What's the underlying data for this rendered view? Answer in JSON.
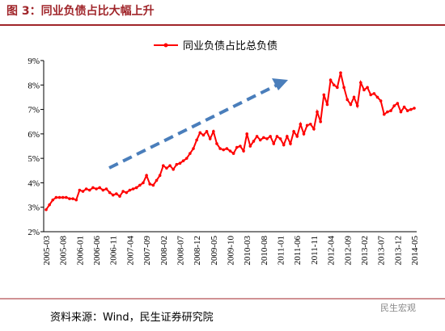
{
  "chart_data": {
    "type": "line",
    "title": "图 3：同业负债占比大幅上升",
    "source": "资料来源：Wind，民生证券研究院",
    "watermark": "民生宏观",
    "categories": [
      "2005-03",
      null,
      null,
      null,
      null,
      "2005-08",
      null,
      null,
      null,
      null,
      "2006-01",
      null,
      null,
      null,
      null,
      "2006-06",
      null,
      null,
      null,
      null,
      "2006-11",
      null,
      null,
      null,
      null,
      "2007-04",
      null,
      null,
      null,
      null,
      "2007-09",
      null,
      null,
      null,
      null,
      "2008-02",
      null,
      null,
      null,
      null,
      "2008-07",
      null,
      null,
      null,
      null,
      "2008-12",
      null,
      null,
      null,
      null,
      "2009-05",
      null,
      null,
      null,
      null,
      "2009-10",
      null,
      null,
      null,
      null,
      "2010-03",
      null,
      null,
      null,
      null,
      "2010-08",
      null,
      null,
      null,
      null,
      "2011-01",
      null,
      null,
      null,
      null,
      "2011-06",
      null,
      null,
      null,
      null,
      "2011-11",
      null,
      null,
      null,
      null,
      "2012-04",
      null,
      null,
      null,
      null,
      "2012-09",
      null,
      null,
      null,
      null,
      "2013-02",
      null,
      null,
      null,
      null,
      "2013-07",
      null,
      null,
      null,
      null,
      "2013-12",
      null,
      null,
      null,
      null,
      "2014-05"
    ],
    "series": [
      {
        "name": "同业负债占比总负债",
        "color": "#ff0000",
        "values": [
          2.9,
          3.1,
          3.3,
          3.4,
          3.4,
          3.4,
          3.4,
          3.35,
          3.35,
          3.3,
          3.7,
          3.65,
          3.75,
          3.7,
          3.8,
          3.75,
          3.8,
          3.7,
          3.75,
          3.6,
          3.5,
          3.55,
          3.45,
          3.65,
          3.6,
          3.7,
          3.75,
          3.8,
          3.9,
          4.0,
          4.3,
          3.95,
          3.9,
          4.1,
          4.3,
          4.7,
          4.6,
          4.7,
          4.55,
          4.75,
          4.8,
          4.9,
          5.0,
          5.2,
          5.4,
          5.75,
          6.05,
          5.95,
          6.1,
          5.8,
          6.1,
          5.6,
          5.4,
          5.35,
          5.4,
          5.3,
          5.2,
          5.45,
          5.5,
          5.3,
          6.0,
          5.5,
          5.7,
          5.9,
          5.75,
          5.85,
          5.8,
          5.9,
          5.6,
          5.9,
          5.8,
          5.55,
          5.9,
          5.6,
          6.1,
          5.9,
          6.4,
          6.0,
          6.35,
          6.4,
          6.2,
          6.9,
          6.5,
          7.6,
          7.2,
          8.2,
          8.0,
          7.9,
          8.5,
          7.9,
          7.4,
          7.2,
          7.5,
          7.15,
          8.1,
          7.8,
          7.9,
          7.6,
          7.65,
          7.5,
          7.35,
          6.8,
          6.9,
          6.95,
          7.15,
          7.25,
          6.9,
          7.1,
          6.95,
          7.0,
          7.05
        ]
      }
    ],
    "ylim": [
      2,
      9
    ],
    "yticks": [
      {
        "value": 2,
        "label": "2%"
      },
      {
        "value": 3,
        "label": "3%"
      },
      {
        "value": 4,
        "label": "4%"
      },
      {
        "value": 5,
        "label": "5%"
      },
      {
        "value": 6,
        "label": "6%"
      },
      {
        "value": 7,
        "label": "7%"
      },
      {
        "value": 8,
        "label": "8%"
      },
      {
        "value": 9,
        "label": "9%"
      }
    ],
    "grid": false
  }
}
